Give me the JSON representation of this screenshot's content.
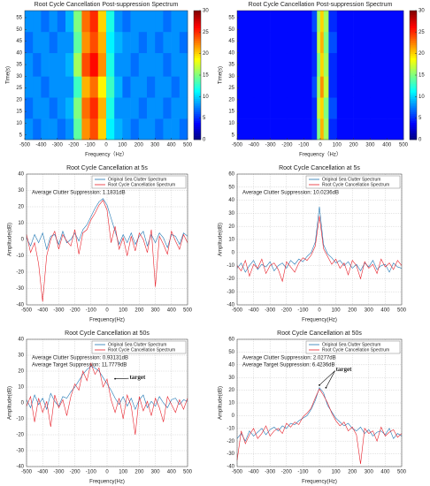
{
  "chart_data": [
    {
      "type": "heatmap",
      "title": "Root Cycle Cancellation Post-suppression Spectrum",
      "xlabel": "Frequency（Hz）",
      "ylabel": "Time(s)",
      "colormap": "jet",
      "xbins": [
        -500,
        -450,
        -400,
        -350,
        -300,
        -250,
        -200,
        -150,
        -100,
        -50,
        0,
        50,
        100,
        150,
        200,
        250,
        300,
        350,
        400,
        450,
        500
      ],
      "ybins": [
        3,
        12,
        21,
        30,
        40,
        49,
        58
      ],
      "z": [
        [
          8,
          7,
          8,
          8,
          7,
          8,
          14,
          22,
          24,
          20,
          11,
          9,
          8,
          7,
          8,
          8,
          7,
          8,
          8,
          7
        ],
        [
          7,
          8,
          8,
          7,
          8,
          9,
          15,
          23,
          25,
          21,
          12,
          8,
          8,
          8,
          7,
          8,
          8,
          7,
          8,
          8
        ],
        [
          8,
          8,
          7,
          8,
          8,
          8,
          13,
          21,
          23,
          19,
          13,
          9,
          7,
          8,
          8,
          7,
          8,
          8,
          7,
          8
        ],
        [
          8,
          7,
          8,
          8,
          8,
          9,
          16,
          24,
          26,
          22,
          12,
          8,
          8,
          7,
          8,
          8,
          8,
          7,
          8,
          8
        ],
        [
          7,
          8,
          8,
          7,
          8,
          8,
          14,
          22,
          24,
          21,
          11,
          9,
          8,
          8,
          7,
          8,
          7,
          8,
          8,
          7
        ],
        [
          8,
          8,
          7,
          8,
          7,
          9,
          15,
          23,
          25,
          20,
          12,
          8,
          7,
          8,
          8,
          8,
          8,
          7,
          8,
          8
        ]
      ],
      "xlim": [
        -500,
        500
      ],
      "xticks": [
        -500,
        -400,
        -300,
        -200,
        -100,
        0,
        100,
        200,
        300,
        400,
        500
      ],
      "ylim": [
        3,
        58
      ],
      "yticks": [
        5,
        10,
        15,
        20,
        25,
        30,
        35,
        40,
        45,
        50,
        55
      ],
      "zlim": [
        0,
        30
      ],
      "zticks": [
        0,
        5,
        10,
        15,
        20,
        25,
        30
      ]
    },
    {
      "type": "heatmap",
      "title": "Root Cycle Cancellation Post-suppression Spectrum",
      "xlabel": "Frequency（Hz）",
      "ylabel": "Time(s)",
      "colormap": "jet",
      "xbins": [
        -500,
        -400,
        -300,
        -200,
        -100,
        -50,
        -20,
        0,
        20,
        50,
        100,
        200,
        300,
        400,
        500
      ],
      "ybins": [
        3,
        12,
        21,
        30,
        40,
        49,
        58
      ],
      "z": [
        [
          4,
          4,
          4,
          4,
          4,
          5,
          15,
          21,
          16,
          5,
          4,
          4,
          4,
          4
        ],
        [
          4,
          4,
          4,
          4,
          4,
          5,
          17,
          20,
          15,
          6,
          4,
          4,
          4,
          4
        ],
        [
          4,
          4,
          4,
          4,
          4,
          6,
          16,
          22,
          17,
          5,
          4,
          4,
          4,
          4
        ],
        [
          4,
          4,
          4,
          4,
          4,
          5,
          15,
          20,
          16,
          5,
          4,
          4,
          4,
          4
        ],
        [
          4,
          4,
          4,
          4,
          4,
          5,
          17,
          21,
          15,
          6,
          4,
          4,
          4,
          4
        ],
        [
          4,
          4,
          4,
          4,
          4,
          6,
          16,
          20,
          16,
          5,
          4,
          4,
          4,
          4
        ]
      ],
      "xlim": [
        -500,
        500
      ],
      "xticks": [
        -500,
        -400,
        -300,
        -200,
        -100,
        0,
        100,
        200,
        300,
        400,
        500
      ],
      "ylim": [
        3,
        58
      ],
      "yticks": [
        5,
        10,
        15,
        20,
        25,
        30,
        35,
        40,
        45,
        50,
        55
      ],
      "zlim": [
        0,
        30
      ],
      "zticks": [
        0,
        5,
        10,
        15,
        20,
        25,
        30
      ]
    },
    {
      "type": "line",
      "title": "Root Cycle Cancellation at 5s",
      "xlabel": "Frequency(Hz)",
      "ylabel": "Amplitude(dB)",
      "grid": true,
      "legend": "upper right",
      "annotations": [
        "Average Clutter Suppression:   1.1831dB"
      ],
      "x": [
        -500,
        -475,
        -450,
        -425,
        -400,
        -375,
        -350,
        -325,
        -300,
        -275,
        -250,
        -225,
        -200,
        -175,
        -150,
        -125,
        -100,
        -75,
        -50,
        -25,
        0,
        25,
        50,
        75,
        100,
        125,
        150,
        175,
        200,
        225,
        250,
        275,
        300,
        325,
        350,
        375,
        400,
        425,
        450,
        475,
        500
      ],
      "series": [
        {
          "name": "Original Sea Clutter Spectrum",
          "color": "#1f77b4",
          "values": [
            1,
            -4,
            3,
            -2,
            4,
            -6,
            2,
            3,
            -3,
            5,
            -2,
            0,
            4,
            -1,
            6,
            9,
            14,
            19,
            23,
            25,
            21,
            13,
            5,
            -3,
            3,
            -2,
            4,
            -3,
            2,
            5,
            -4,
            3,
            -2,
            4,
            1,
            -5,
            3,
            2,
            -3,
            4,
            2
          ]
        },
        {
          "name": "Root Cycle Cancellation Spectrum",
          "color": "#e8202a",
          "values": [
            3,
            -8,
            -2,
            -15,
            -38,
            -10,
            0,
            5,
            -6,
            3,
            -1,
            -4,
            6,
            -9,
            4,
            6,
            12,
            16,
            21,
            24,
            18,
            -2,
            8,
            -6,
            1,
            -10,
            2,
            -7,
            4,
            0,
            -8,
            6,
            -29,
            2,
            -3,
            -9,
            5,
            -1,
            -6,
            3,
            -2
          ]
        }
      ],
      "xlim": [
        -500,
        500
      ],
      "xticks": [
        -500,
        -400,
        -300,
        -200,
        -100,
        0,
        100,
        200,
        300,
        400,
        500
      ],
      "ylim": [
        -40,
        40
      ],
      "yticks": [
        -40,
        -30,
        -20,
        -10,
        0,
        10,
        20,
        30,
        40
      ]
    },
    {
      "type": "line",
      "title": "Root Cycle Cancellation at 5s",
      "xlabel": "Frequency(Hz)",
      "ylabel": "Amplitude(dB)",
      "grid": true,
      "legend": "upper right",
      "annotations": [
        "Average Clutter Suppression:   10.0236dB"
      ],
      "x": [
        -500,
        -475,
        -450,
        -425,
        -400,
        -375,
        -350,
        -325,
        -300,
        -275,
        -250,
        -225,
        -200,
        -175,
        -150,
        -125,
        -100,
        -75,
        -50,
        -25,
        0,
        25,
        50,
        75,
        100,
        125,
        150,
        175,
        200,
        225,
        250,
        275,
        300,
        325,
        350,
        375,
        400,
        425,
        450,
        475,
        500
      ],
      "series": [
        {
          "name": "Original Sea Clutter Spectrum",
          "color": "#1f77b4",
          "values": [
            -12,
            -8,
            -15,
            -10,
            -6,
            -13,
            -9,
            -11,
            -7,
            -14,
            -10,
            -8,
            -12,
            -6,
            -9,
            -5,
            -7,
            -3,
            0,
            8,
            35,
            6,
            -1,
            -4,
            -8,
            -6,
            -10,
            -7,
            -12,
            -9,
            -14,
            -8,
            -11,
            -6,
            -13,
            -10,
            -9,
            -15,
            -8,
            -11,
            -12
          ]
        },
        {
          "name": "Root Cycle Cancellation Spectrum",
          "color": "#e8202a",
          "values": [
            -10,
            -14,
            -6,
            -18,
            -9,
            -12,
            -5,
            -16,
            -10,
            -8,
            -13,
            -22,
            -7,
            -11,
            -15,
            -8,
            -4,
            -6,
            -2,
            5,
            28,
            3,
            -3,
            -9,
            -5,
            -12,
            -8,
            -17,
            -6,
            -10,
            -20,
            -7,
            -12,
            -9,
            -16,
            -5,
            -11,
            -8,
            -13,
            -6,
            -10
          ]
        }
      ],
      "xlim": [
        -500,
        500
      ],
      "xticks": [
        -500,
        -400,
        -300,
        -200,
        -100,
        0,
        100,
        200,
        300,
        400,
        500
      ],
      "ylim": [
        -40,
        60
      ],
      "yticks": [
        -40,
        -30,
        -20,
        -10,
        0,
        10,
        20,
        30,
        40,
        50,
        60
      ]
    },
    {
      "type": "line",
      "title": "Root Cycle Cancellation at 50s",
      "xlabel": "Frequency(Hz)",
      "ylabel": "Amplitude(dB)",
      "grid": true,
      "legend": "upper right",
      "annotations": [
        "Average Clutter Suppression:   0.93131dB",
        "Average Target Suppression:   11.7779dB"
      ],
      "target_label": "target",
      "x": [
        -500,
        -475,
        -450,
        -425,
        -400,
        -375,
        -350,
        -325,
        -300,
        -275,
        -250,
        -225,
        -200,
        -175,
        -150,
        -125,
        -100,
        -75,
        -50,
        -25,
        0,
        25,
        50,
        75,
        100,
        125,
        150,
        175,
        200,
        225,
        250,
        275,
        300,
        325,
        350,
        375,
        400,
        425,
        450,
        475,
        500
      ],
      "series": [
        {
          "name": "Original Sea Clutter Spectrum",
          "color": "#1f77b4",
          "values": [
            2,
            -3,
            5,
            -1,
            3,
            -4,
            6,
            1,
            -2,
            4,
            3,
            7,
            10,
            14,
            18,
            21,
            23,
            22,
            20,
            16,
            12,
            8,
            3,
            -1,
            4,
            -2,
            3,
            -4,
            2,
            5,
            -3,
            1,
            -2,
            4,
            0,
            -3,
            2,
            3,
            -1,
            2,
            1
          ]
        },
        {
          "name": "Root Cycle Cancellation Spectrum",
          "color": "#e8202a",
          "values": [
            -2,
            4,
            -12,
            3,
            -6,
            1,
            -15,
            5,
            -3,
            2,
            -8,
            4,
            12,
            8,
            20,
            14,
            25,
            18,
            22,
            10,
            15,
            2,
            -6,
            3,
            -10,
            5,
            -2,
            -20,
            4,
            -5,
            1,
            -8,
            3,
            -3,
            -12,
            4,
            -1,
            -6,
            2,
            -4,
            3
          ]
        }
      ],
      "xlim": [
        -500,
        500
      ],
      "xticks": [
        -500,
        -400,
        -300,
        -200,
        -100,
        0,
        100,
        200,
        300,
        400,
        500
      ],
      "ylim": [
        -40,
        40
      ],
      "yticks": [
        -40,
        -30,
        -20,
        -10,
        0,
        10,
        20,
        30,
        40
      ]
    },
    {
      "type": "line",
      "title": "Root Cycle Cancellation at 50s",
      "xlabel": "Frequency(Hz)",
      "ylabel": "Amplitude(dB)",
      "grid": true,
      "legend": "upper right",
      "annotations": [
        "Average Clutter Suppression:   2.0277dB",
        "Average Target Suppression:   6.4236dB"
      ],
      "target_label": "target",
      "x": [
        -500,
        -475,
        -450,
        -425,
        -400,
        -375,
        -350,
        -325,
        -300,
        -275,
        -250,
        -225,
        -200,
        -175,
        -150,
        -125,
        -100,
        -75,
        -50,
        -25,
        0,
        25,
        50,
        75,
        100,
        125,
        150,
        175,
        200,
        225,
        250,
        275,
        300,
        325,
        350,
        375,
        400,
        425,
        450,
        475,
        500
      ],
      "series": [
        {
          "name": "Original Sea Clutter Spectrum",
          "color": "#1f77b4",
          "values": [
            -18,
            -14,
            -20,
            -12,
            -16,
            -13,
            -10,
            -15,
            -11,
            -9,
            -12,
            -8,
            -10,
            -6,
            -7,
            -4,
            -2,
            0,
            5,
            12,
            22,
            18,
            8,
            3,
            -2,
            -5,
            -8,
            -6,
            -10,
            -12,
            -9,
            -14,
            -11,
            -16,
            -13,
            -12,
            -15,
            -10,
            -18,
            -14,
            -16
          ]
        },
        {
          "name": "Root Cycle Cancellation Spectrum",
          "color": "#e8202a",
          "values": [
            -35,
            -12,
            -22,
            -15,
            -10,
            -18,
            -14,
            -8,
            -16,
            -12,
            -10,
            -14,
            -6,
            -9,
            -5,
            -7,
            -1,
            2,
            6,
            14,
            21,
            16,
            10,
            2,
            -4,
            -8,
            -5,
            -12,
            -9,
            -15,
            -38,
            -10,
            -14,
            -12,
            -20,
            -9,
            -16,
            -13,
            -11,
            -17,
            -14
          ]
        }
      ],
      "xlim": [
        -500,
        500
      ],
      "xticks": [
        -500,
        -400,
        -300,
        -200,
        -100,
        0,
        100,
        200,
        300,
        400,
        500
      ],
      "ylim": [
        -40,
        60
      ],
      "yticks": [
        -40,
        -30,
        -20,
        -10,
        0,
        10,
        20,
        30,
        40,
        50,
        60
      ]
    }
  ]
}
